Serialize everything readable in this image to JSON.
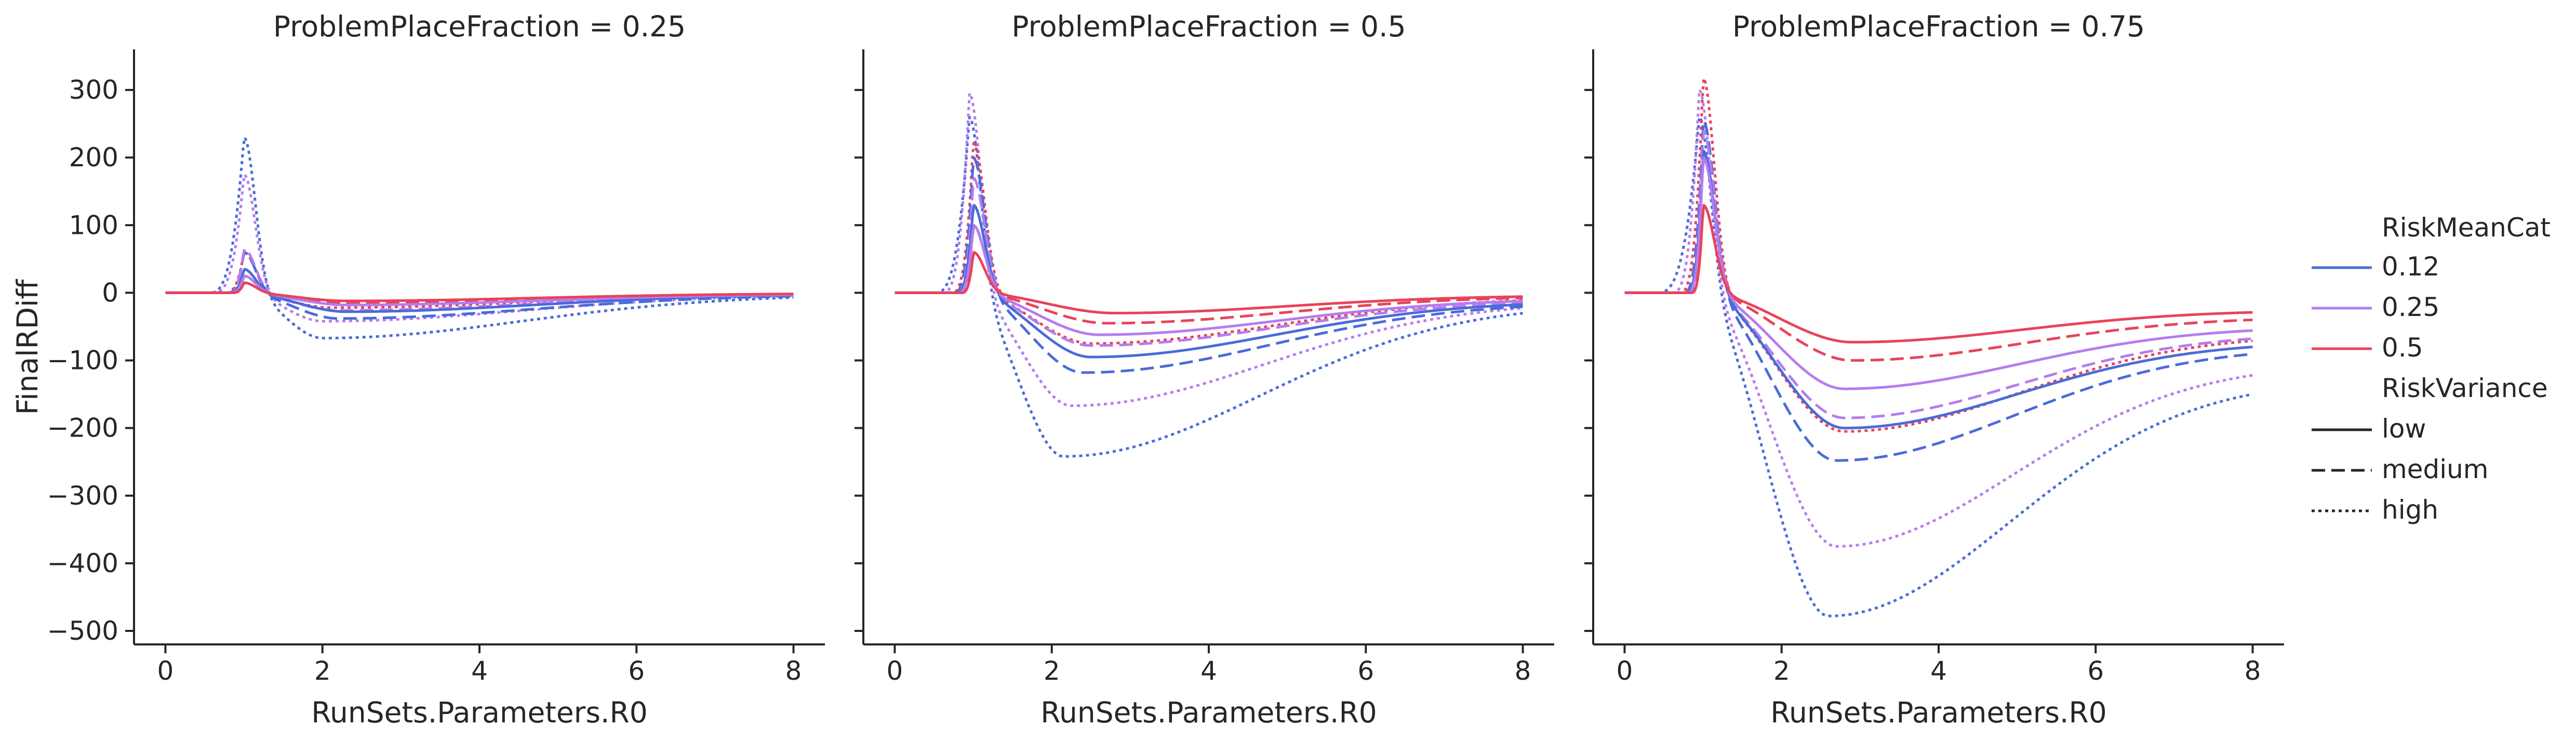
{
  "chart_data": {
    "type": "line",
    "xlabel": "RunSets.Parameters.R0",
    "ylabel": "FinalRDiff",
    "xlim": [
      -0.4,
      8.4
    ],
    "ylim": [
      -520,
      360
    ],
    "xticks": [
      0,
      2,
      4,
      6,
      8
    ],
    "yticks": [
      -500,
      -400,
      -300,
      -200,
      -100,
      0,
      100,
      200,
      300
    ],
    "grid": false,
    "legend": {
      "placement": "right",
      "hue_title": "RiskMeanCat",
      "hue_entries": [
        {
          "label": "0.12",
          "color": "#4a6bd8"
        },
        {
          "label": "0.25",
          "color": "#b57cf0"
        },
        {
          "label": "0.5",
          "color": "#e8435a"
        }
      ],
      "style_title": "RiskVariance",
      "style_entries": [
        {
          "label": "low",
          "dash": "solid"
        },
        {
          "label": "medium",
          "dash": "dashed"
        },
        {
          "label": "high",
          "dash": "dotted"
        }
      ]
    },
    "series_colors": {
      "0.12": "#4a6bd8",
      "0.25": "#b57cf0",
      "0.5": "#e8435a"
    },
    "panels": [
      {
        "title": "ProblemPlaceFraction = 0.25",
        "series": [
          {
            "mean": "0.12",
            "variance": "low",
            "onset": 0.8,
            "peak_x": 1.0,
            "peak": 35,
            "trough_x": 2.3,
            "trough": -28,
            "end": -2
          },
          {
            "mean": "0.12",
            "variance": "medium",
            "onset": 0.78,
            "peak_x": 1.0,
            "peak": 60,
            "trough_x": 2.2,
            "trough": -38,
            "end": -3
          },
          {
            "mean": "0.12",
            "variance": "high",
            "onset": 0.55,
            "peak_x": 1.0,
            "peak": 230,
            "trough_x": 2.0,
            "trough": -67,
            "end": -3
          },
          {
            "mean": "0.25",
            "variance": "low",
            "onset": 0.82,
            "peak_x": 1.0,
            "peak": 25,
            "trough_x": 2.3,
            "trough": -18,
            "end": -2
          },
          {
            "mean": "0.25",
            "variance": "medium",
            "onset": 0.8,
            "peak_x": 1.0,
            "peak": 65,
            "trough_x": 2.2,
            "trough": -26,
            "end": -2
          },
          {
            "mean": "0.25",
            "variance": "high",
            "onset": 0.6,
            "peak_x": 1.0,
            "peak": 175,
            "trough_x": 2.0,
            "trough": -42,
            "end": -2
          },
          {
            "mean": "0.5",
            "variance": "low",
            "onset": 0.85,
            "peak_x": 1.0,
            "peak": 15,
            "trough_x": 2.3,
            "trough": -12,
            "end": -1
          },
          {
            "mean": "0.5",
            "variance": "medium",
            "onset": 0.83,
            "peak_x": 1.0,
            "peak": 25,
            "trough_x": 2.2,
            "trough": -15,
            "end": -1
          },
          {
            "mean": "0.5",
            "variance": "high",
            "onset": 0.75,
            "peak_x": 1.0,
            "peak": 60,
            "trough_x": 2.1,
            "trough": -22,
            "end": -1
          }
        ]
      },
      {
        "title": "ProblemPlaceFraction = 0.5",
        "series": [
          {
            "mean": "0.12",
            "variance": "low",
            "onset": 0.78,
            "peak_x": 1.0,
            "peak": 130,
            "trough_x": 2.5,
            "trough": -95,
            "end": -12
          },
          {
            "mean": "0.12",
            "variance": "medium",
            "onset": 0.75,
            "peak_x": 1.0,
            "peak": 200,
            "trough_x": 2.4,
            "trough": -118,
            "end": -14
          },
          {
            "mean": "0.12",
            "variance": "high",
            "onset": 0.5,
            "peak_x": 0.95,
            "peak": 260,
            "trough_x": 2.15,
            "trough": -242,
            "end": -16
          },
          {
            "mean": "0.25",
            "variance": "low",
            "onset": 0.8,
            "peak_x": 1.0,
            "peak": 100,
            "trough_x": 2.6,
            "trough": -62,
            "end": -9
          },
          {
            "mean": "0.25",
            "variance": "medium",
            "onset": 0.78,
            "peak_x": 1.0,
            "peak": 170,
            "trough_x": 2.5,
            "trough": -78,
            "end": -11
          },
          {
            "mean": "0.25",
            "variance": "high",
            "onset": 0.6,
            "peak_x": 0.95,
            "peak": 295,
            "trough_x": 2.25,
            "trough": -167,
            "end": -13
          },
          {
            "mean": "0.5",
            "variance": "low",
            "onset": 0.85,
            "peak_x": 1.0,
            "peak": 60,
            "trough_x": 2.8,
            "trough": -30,
            "end": -4
          },
          {
            "mean": "0.5",
            "variance": "medium",
            "onset": 0.82,
            "peak_x": 1.0,
            "peak": 100,
            "trough_x": 2.7,
            "trough": -45,
            "end": -5
          },
          {
            "mean": "0.5",
            "variance": "high",
            "onset": 0.72,
            "peak_x": 1.0,
            "peak": 225,
            "trough_x": 2.5,
            "trough": -75,
            "end": -7
          }
        ]
      },
      {
        "title": "ProblemPlaceFraction = 0.75",
        "series": [
          {
            "mean": "0.12",
            "variance": "low",
            "onset": 0.78,
            "peak_x": 1.0,
            "peak": 210,
            "trough_x": 2.8,
            "trough": -200,
            "end": -72
          },
          {
            "mean": "0.12",
            "variance": "medium",
            "onset": 0.75,
            "peak_x": 1.0,
            "peak": 255,
            "trough_x": 2.7,
            "trough": -248,
            "end": -80
          },
          {
            "mean": "0.12",
            "variance": "high",
            "onset": 0.4,
            "peak_x": 0.95,
            "peak": 260,
            "trough_x": 2.6,
            "trough": -478,
            "end": -128
          },
          {
            "mean": "0.25",
            "variance": "low",
            "onset": 0.8,
            "peak_x": 1.0,
            "peak": 200,
            "trough_x": 2.8,
            "trough": -142,
            "end": -50
          },
          {
            "mean": "0.25",
            "variance": "medium",
            "onset": 0.78,
            "peak_x": 1.0,
            "peak": 240,
            "trough_x": 2.8,
            "trough": -185,
            "end": -60
          },
          {
            "mean": "0.25",
            "variance": "high",
            "onset": 0.6,
            "peak_x": 0.95,
            "peak": 300,
            "trough_x": 2.7,
            "trough": -375,
            "end": -105
          },
          {
            "mean": "0.5",
            "variance": "low",
            "onset": 0.85,
            "peak_x": 1.0,
            "peak": 130,
            "trough_x": 2.9,
            "trough": -73,
            "end": -26
          },
          {
            "mean": "0.5",
            "variance": "medium",
            "onset": 0.82,
            "peak_x": 1.0,
            "peak": 210,
            "trough_x": 2.9,
            "trough": -100,
            "end": -36
          },
          {
            "mean": "0.5",
            "variance": "high",
            "onset": 0.7,
            "peak_x": 1.0,
            "peak": 318,
            "trough_x": 2.8,
            "trough": -205,
            "end": -62
          }
        ]
      }
    ]
  }
}
